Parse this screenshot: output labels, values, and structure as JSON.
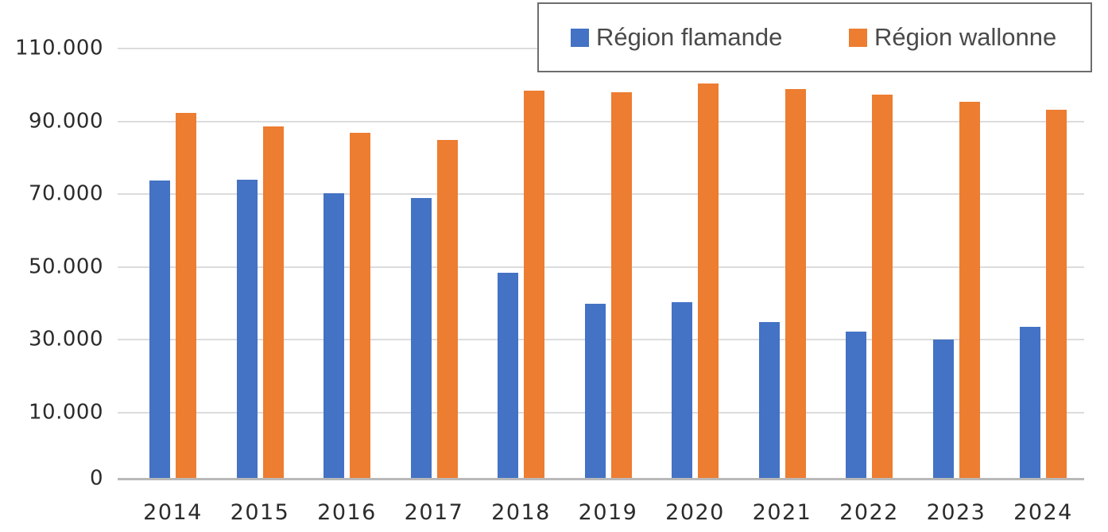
{
  "chart_data": {
    "type": "bar",
    "title": "",
    "xlabel": "",
    "ylabel": "",
    "categories": [
      "2014",
      "2015",
      "2016",
      "2017",
      "2018",
      "2019",
      "2020",
      "2021",
      "2022",
      "2023",
      "2024"
    ],
    "series": [
      {
        "name": "Région flamande",
        "color": "#4472C4",
        "values": [
          73700,
          73900,
          70300,
          69000,
          48400,
          39800,
          40200,
          34800,
          32200,
          30000,
          33400
        ]
      },
      {
        "name": "Région wallonne",
        "color": "#ED7D31",
        "values": [
          92300,
          88600,
          86800,
          84800,
          98400,
          98000,
          100400,
          98900,
          97400,
          95400,
          93100
        ]
      }
    ],
    "y_ticks": [
      {
        "label": "110.000",
        "value": 110000
      },
      {
        "label": "90.000",
        "value": 90000
      },
      {
        "label": "70.000",
        "value": 70000
      },
      {
        "label": "50.000",
        "value": 50000
      },
      {
        "label": "30.000",
        "value": 30000
      },
      {
        "label": "10.000",
        "value": 10000
      },
      {
        "label": "0",
        "value": 0
      }
    ],
    "ylim": [
      0,
      115000
    ],
    "grid": true,
    "legend_position": "top-right"
  },
  "legend": {
    "items": [
      {
        "label": "Région flamande",
        "color": "#4472C4"
      },
      {
        "label": "Région wallonne",
        "color": "#ED7D31"
      }
    ]
  },
  "colors": {
    "series_blue": "#4472C4",
    "series_orange": "#ED7D31",
    "gridline": "#dcdcdc",
    "axis_line": "#b9b9b9",
    "tick_text": "#2b2b2b",
    "legend_border": "#6d6d6d",
    "legend_text": "#4a4a4a",
    "background": "#ffffff"
  }
}
